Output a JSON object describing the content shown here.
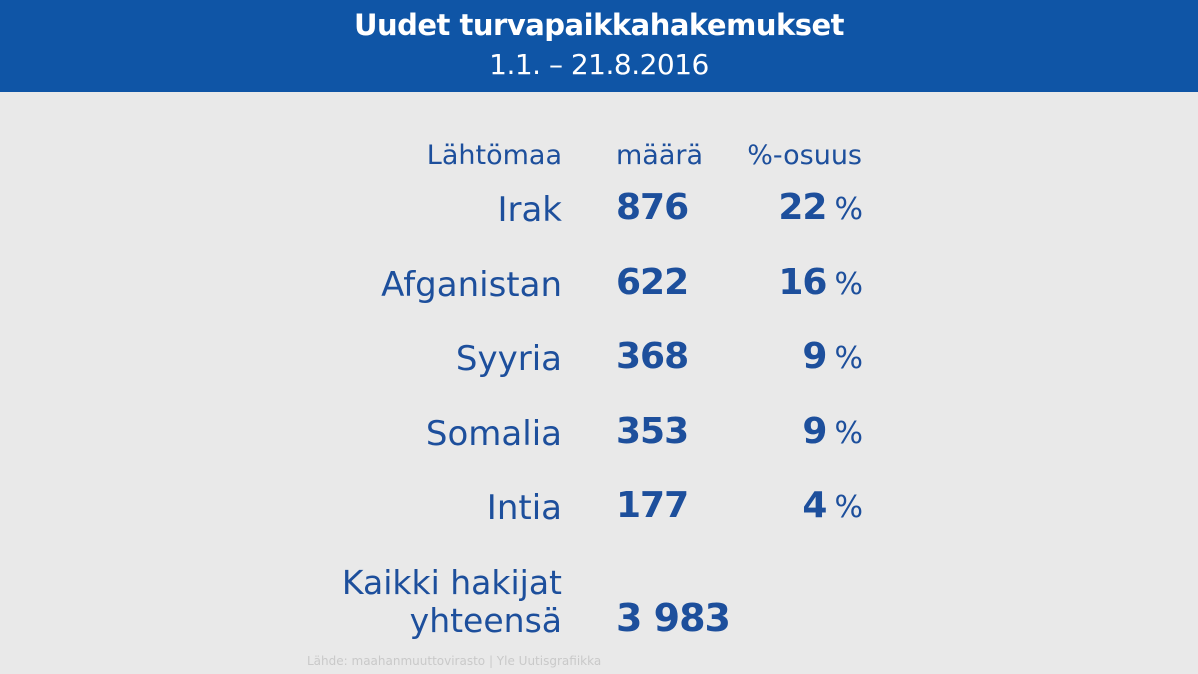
{
  "header": {
    "title": "Uudet turvapaikkahakemukset",
    "subtitle": "1.1. – 21.8.2016"
  },
  "colors": {
    "header_bg": "#0f55a6",
    "text_blue": "#1d4f9c",
    "background": "#e9e9e9"
  },
  "chart_data": {
    "type": "table",
    "title": "Uudet turvapaikkahakemukset",
    "subtitle": "1.1. – 21.8.2016",
    "columns": [
      "Lähtömaa",
      "määrä",
      "%-osuus"
    ],
    "rows": [
      {
        "country": "Irak",
        "count": "876",
        "share": "22",
        "share_unit": "%"
      },
      {
        "country": "Afganistan",
        "count": "622",
        "share": "16",
        "share_unit": "%"
      },
      {
        "country": "Syyria",
        "count": "368",
        "share": "9",
        "share_unit": "%"
      },
      {
        "country": "Somalia",
        "count": "353",
        "share": "9",
        "share_unit": "%"
      },
      {
        "country": "Intia",
        "count": "177",
        "share": "4",
        "share_unit": "%"
      }
    ],
    "total": {
      "label_line1": "Kaikki hakijat",
      "label_line2": "yhteensä",
      "value": "3 983"
    },
    "source": "Lähde: maahanmuuttovirasto | Yle Uutisgrafiikka"
  }
}
